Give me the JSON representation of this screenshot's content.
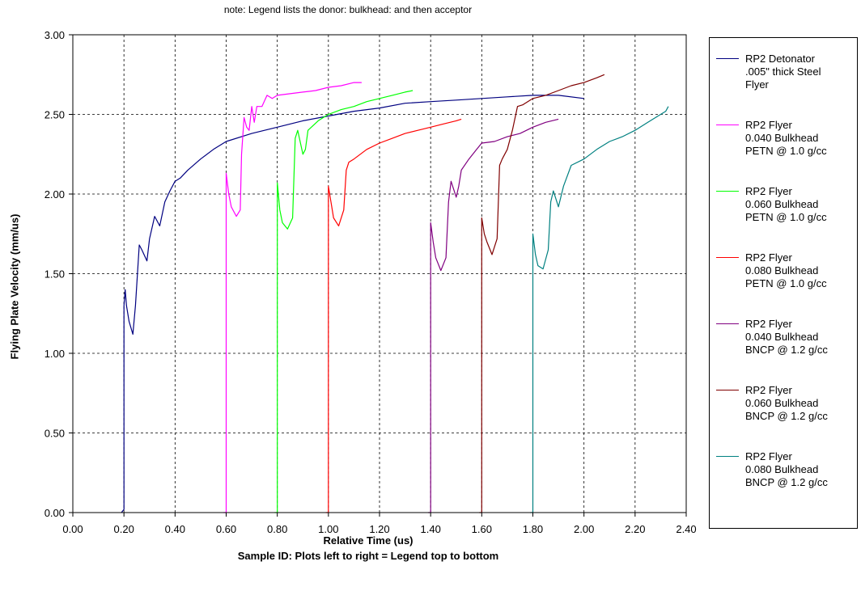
{
  "chart_data": {
    "type": "line",
    "note": "note:  Legend lists the donor: bulkhead: and then acceptor",
    "xlabel": "Relative Time (us)",
    "xlabel_sub": "Sample ID:  Plots left to right = Legend top to bottom",
    "ylabel": "Flying Plate Velocity (mm/us)",
    "xlim": [
      0,
      2.4
    ],
    "ylim": [
      0,
      3.0
    ],
    "x_ticks": [
      "0.00",
      "0.20",
      "0.40",
      "0.60",
      "0.80",
      "1.00",
      "1.20",
      "1.40",
      "1.60",
      "1.80",
      "2.00",
      "2.20",
      "2.40"
    ],
    "y_ticks": [
      "0.00",
      "0.50",
      "1.00",
      "1.50",
      "2.00",
      "2.50",
      "3.00"
    ],
    "grid": true,
    "legend_position": "right",
    "series": [
      {
        "name": "RP2 Detonator\n.005\" thick Steel\nFlyer",
        "color": "#000080",
        "x": [
          0.19,
          0.2,
          0.2,
          0.205,
          0.21,
          0.22,
          0.235,
          0.245,
          0.26,
          0.27,
          0.29,
          0.3,
          0.32,
          0.34,
          0.36,
          0.38,
          0.4,
          0.42,
          0.45,
          0.5,
          0.55,
          0.6,
          0.7,
          0.8,
          0.9,
          1.0,
          1.1,
          1.2,
          1.3,
          1.4,
          1.5,
          1.6,
          1.7,
          1.8,
          1.9,
          2.0
        ],
        "y": [
          0.0,
          0.02,
          1.3,
          1.4,
          1.3,
          1.2,
          1.12,
          1.3,
          1.68,
          1.65,
          1.58,
          1.72,
          1.86,
          1.8,
          1.95,
          2.02,
          2.08,
          2.1,
          2.15,
          2.22,
          2.28,
          2.33,
          2.38,
          2.42,
          2.46,
          2.49,
          2.52,
          2.54,
          2.57,
          2.58,
          2.59,
          2.6,
          2.61,
          2.62,
          2.62,
          2.6
        ]
      },
      {
        "name": "RP2 Flyer\n0.040 Bulkhead\nPETN @ 1.0 g/cc",
        "color": "#FF00FF",
        "x": [
          0.59,
          0.6,
          0.6,
          0.61,
          0.62,
          0.64,
          0.655,
          0.66,
          0.67,
          0.68,
          0.69,
          0.7,
          0.71,
          0.72,
          0.74,
          0.76,
          0.78,
          0.8,
          0.85,
          0.9,
          0.95,
          1.0,
          1.05,
          1.1,
          1.13
        ],
        "y": [
          0.0,
          0.0,
          2.13,
          2.0,
          1.92,
          1.86,
          1.9,
          2.25,
          2.48,
          2.42,
          2.4,
          2.55,
          2.45,
          2.55,
          2.55,
          2.62,
          2.6,
          2.62,
          2.63,
          2.64,
          2.65,
          2.67,
          2.68,
          2.7,
          2.7
        ],
        "note_only": false
      },
      {
        "name": "RP2 Flyer\n0.060 Bulkhead\nPETN @ 1.0 g/cc",
        "color": "#00FF00",
        "x": [
          0.79,
          0.8,
          0.8,
          0.81,
          0.82,
          0.84,
          0.86,
          0.87,
          0.88,
          0.9,
          0.91,
          0.92,
          0.94,
          0.96,
          0.98,
          1.0,
          1.05,
          1.1,
          1.15,
          1.2,
          1.25,
          1.3,
          1.33
        ],
        "y": [
          0.0,
          0.0,
          2.07,
          1.9,
          1.82,
          1.78,
          1.85,
          2.35,
          2.4,
          2.25,
          2.28,
          2.4,
          2.43,
          2.46,
          2.48,
          2.5,
          2.53,
          2.55,
          2.58,
          2.6,
          2.62,
          2.64,
          2.65
        ]
      },
      {
        "name": "RP2 Flyer\n0.080 Bulkhead\nPETN @ 1.0 g/cc",
        "color": "#FF0000",
        "x": [
          0.99,
          1.0,
          1.0,
          1.01,
          1.02,
          1.04,
          1.06,
          1.07,
          1.08,
          1.1,
          1.15,
          1.2,
          1.25,
          1.3,
          1.35,
          1.4,
          1.45,
          1.5,
          1.52
        ],
        "y": [
          0.0,
          0.0,
          2.05,
          1.95,
          1.85,
          1.8,
          1.9,
          2.15,
          2.2,
          2.22,
          2.28,
          2.32,
          2.35,
          2.38,
          2.4,
          2.42,
          2.44,
          2.46,
          2.47
        ]
      },
      {
        "name": "RP2 Flyer\n0.040 Bulkhead\nBNCP @ 1.2 g/cc",
        "color": "#800080",
        "x": [
          1.39,
          1.4,
          1.4,
          1.41,
          1.42,
          1.44,
          1.46,
          1.47,
          1.48,
          1.5,
          1.51,
          1.52,
          1.55,
          1.58,
          1.6,
          1.65,
          1.7,
          1.75,
          1.8,
          1.85,
          1.9
        ],
        "y": [
          0.0,
          0.0,
          1.82,
          1.7,
          1.6,
          1.52,
          1.6,
          1.95,
          2.08,
          1.98,
          2.05,
          2.15,
          2.22,
          2.28,
          2.32,
          2.33,
          2.36,
          2.38,
          2.42,
          2.45,
          2.47
        ]
      },
      {
        "name": "RP2 Flyer\n0.060 Bulkhead\nBNCP @ 1.2 g/cc",
        "color": "#800000",
        "x": [
          1.59,
          1.6,
          1.6,
          1.61,
          1.62,
          1.64,
          1.66,
          1.67,
          1.68,
          1.7,
          1.72,
          1.74,
          1.76,
          1.78,
          1.8,
          1.85,
          1.9,
          1.95,
          2.0,
          2.05,
          2.08
        ],
        "y": [
          0.0,
          0.0,
          1.85,
          1.75,
          1.7,
          1.62,
          1.72,
          2.18,
          2.22,
          2.28,
          2.4,
          2.55,
          2.56,
          2.58,
          2.6,
          2.62,
          2.65,
          2.68,
          2.7,
          2.73,
          2.75
        ]
      },
      {
        "name": "RP2 Flyer\n0.080 Bulkhead\nBNCP @ 1.2 g/cc",
        "color": "#008080",
        "x": [
          1.79,
          1.8,
          1.8,
          1.81,
          1.82,
          1.84,
          1.86,
          1.87,
          1.88,
          1.9,
          1.92,
          1.95,
          2.0,
          2.05,
          2.1,
          2.15,
          2.2,
          2.25,
          2.28,
          2.3,
          2.32,
          2.33
        ],
        "y": [
          0.0,
          0.0,
          1.75,
          1.62,
          1.55,
          1.53,
          1.65,
          1.95,
          2.02,
          1.92,
          2.05,
          2.18,
          2.22,
          2.28,
          2.33,
          2.36,
          2.4,
          2.45,
          2.48,
          2.5,
          2.52,
          2.55
        ]
      }
    ]
  }
}
